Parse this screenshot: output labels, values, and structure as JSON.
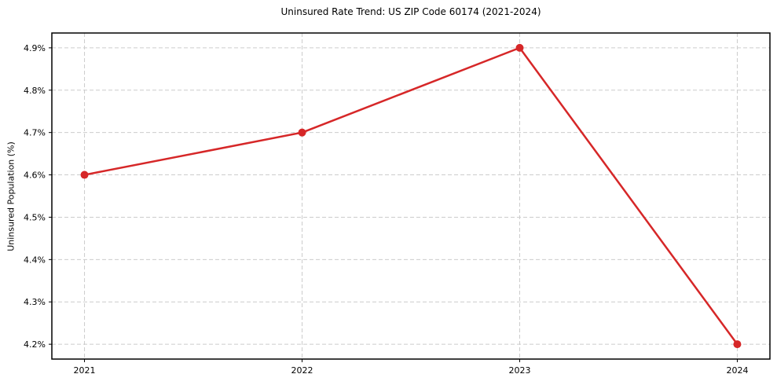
{
  "chart_data": {
    "type": "line",
    "title": "Uninsured Rate Trend: US ZIP Code 60174 (2021-2024)",
    "ylabel": "Uninsured Population (%)",
    "xlabel": "",
    "categories": [
      "2021",
      "2022",
      "2023",
      "2024"
    ],
    "x": [
      2021,
      2022,
      2023,
      2024
    ],
    "series": [
      {
        "name": "Uninsured rate",
        "values": [
          4.6,
          4.7,
          4.9,
          4.2
        ]
      }
    ],
    "yticks": [
      4.2,
      4.3,
      4.4,
      4.5,
      4.6,
      4.7,
      4.8,
      4.9
    ],
    "ytick_labels": [
      "4.2%",
      "4.3%",
      "4.4%",
      "4.5%",
      "4.6%",
      "4.7%",
      "4.8%",
      "4.9%"
    ],
    "xlim": [
      2020.85,
      2024.15
    ],
    "ylim": [
      4.165,
      4.935
    ],
    "grid": true,
    "grid_style": "dashed",
    "legend": "none",
    "marker": "circle",
    "colors": {
      "line": "#d62728",
      "marker": "#d62728",
      "grid": "#cccccc",
      "axis": "#000000",
      "background": "#ffffff"
    }
  }
}
